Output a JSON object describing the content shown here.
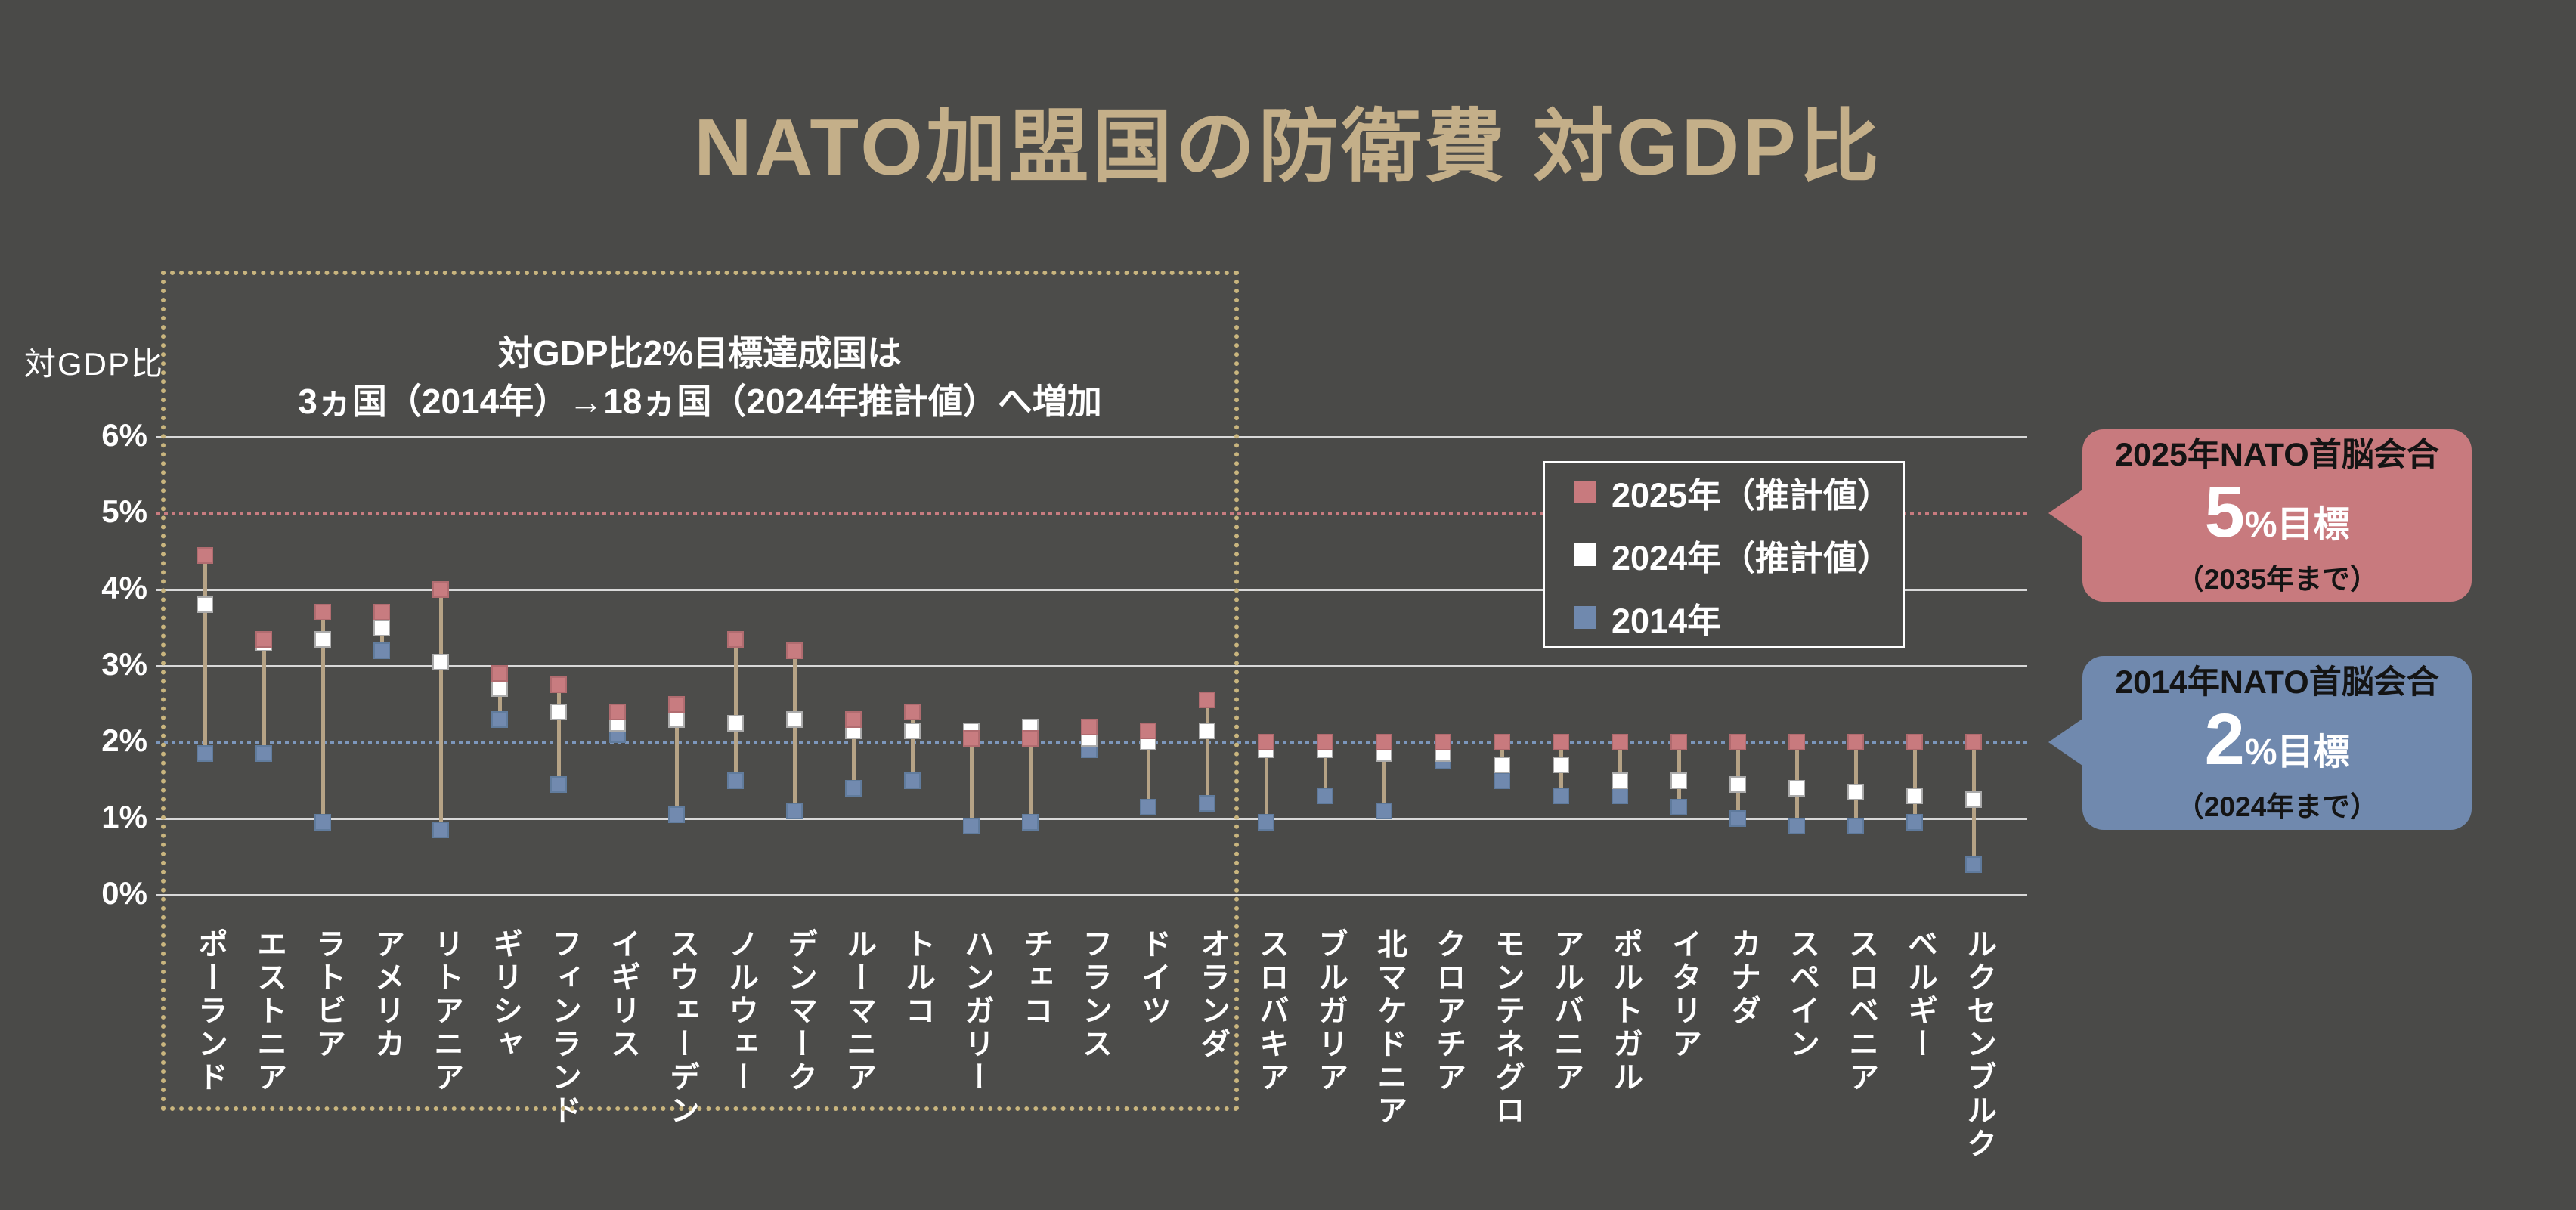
{
  "title": "NATO加盟国の防衛費 対GDP比",
  "title_color": "#c4af89",
  "background_color": "#4a4a48",
  "y_axis": {
    "label": "対GDP比",
    "tick_labels": [
      "6%",
      "5%",
      "4%",
      "3%",
      "2%",
      "1%",
      "0%"
    ]
  },
  "annotation": {
    "line1": "対GDP比2%目標達成国は",
    "line2": "3ヵ国（2014年）→18ヵ国（2024年推計値）へ増加"
  },
  "callouts": {
    "target5": {
      "line1": "2025年NATO首脳会合",
      "big": "5",
      "unit": "%目標",
      "line3": "（2035年まで）",
      "color": "#c87a7e",
      "points_at_percent": 5
    },
    "target2": {
      "line1": "2014年NATO首脳会合",
      "big": "2",
      "unit": "%目標",
      "line3": "（2024年まで）",
      "color": "#7089ae",
      "points_at_percent": 2
    }
  },
  "chart_data": {
    "type": "scatter",
    "title": "NATO加盟国の防衛費 対GDP比",
    "ylabel": "対GDP比",
    "ylim": [
      0,
      6.5
    ],
    "yticks": [
      0,
      1,
      2,
      3,
      4,
      5,
      6
    ],
    "grid": "horizontal",
    "legend_position": "upper right inside plot",
    "target_lines": [
      {
        "value": 5,
        "style": "dotted",
        "color": "#c87a7e"
      },
      {
        "value": 2,
        "style": "dotted",
        "color": "#7b96bb"
      }
    ],
    "highlight_box_note": "first 18 countries enclosed by tan dotted box",
    "categories": [
      "ポーランド",
      "エストニア",
      "ラトビア",
      "アメリカ",
      "リトアニア",
      "ギリシャ",
      "フィンランド",
      "イギリス",
      "スウェーデン",
      "ノルウェー",
      "デンマーク",
      "ルーマニア",
      "トルコ",
      "ハンガリー",
      "チェコ",
      "フランス",
      "ドイツ",
      "オランダ",
      "スロバキア",
      "ブルガリア",
      "北マケドニア",
      "クロアチア",
      "モンテネグロ",
      "アルバニア",
      "ポルトガル",
      "イタリア",
      "カナダ",
      "スペイン",
      "スロベニア",
      "ベルギー",
      "ルクセンブルク"
    ],
    "series": [
      {
        "name": "2025年（推計値）",
        "color": "#c87a7e",
        "border_color": "#b06a6e",
        "values": [
          4.45,
          3.35,
          3.7,
          3.7,
          4.0,
          2.9,
          2.75,
          2.4,
          2.5,
          3.35,
          3.2,
          2.3,
          2.4,
          2.05,
          2.05,
          2.2,
          2.15,
          2.55,
          2.0,
          2.0,
          2.0,
          2.0,
          2.0,
          2.0,
          2.0,
          2.0,
          2.0,
          2.0,
          2.0,
          2.0,
          2.0
        ]
      },
      {
        "name": "2024年（推計値）",
        "color": "#ffffff",
        "border_color": "#aaaaaa",
        "values": [
          3.8,
          3.3,
          3.35,
          3.5,
          3.05,
          2.7,
          2.4,
          2.25,
          2.3,
          2.25,
          2.3,
          2.15,
          2.15,
          2.15,
          2.2,
          2.05,
          2.0,
          2.15,
          1.9,
          1.9,
          1.85,
          1.85,
          1.7,
          1.7,
          1.5,
          1.5,
          1.45,
          1.4,
          1.35,
          1.3,
          1.25
        ]
      },
      {
        "name": "2014年",
        "color": "#7089ae",
        "border_color": "#5f7a9c",
        "values": [
          1.85,
          1.85,
          0.95,
          3.2,
          0.85,
          2.3,
          1.45,
          2.1,
          1.05,
          1.5,
          1.1,
          1.4,
          1.5,
          0.9,
          0.95,
          1.9,
          1.15,
          1.2,
          0.95,
          1.3,
          1.1,
          1.75,
          1.5,
          1.3,
          1.3,
          1.15,
          1.0,
          0.9,
          0.9,
          0.95,
          0.4
        ]
      }
    ],
    "connector_color": "#b5a285",
    "gridline_color": "#d9d9d9"
  }
}
